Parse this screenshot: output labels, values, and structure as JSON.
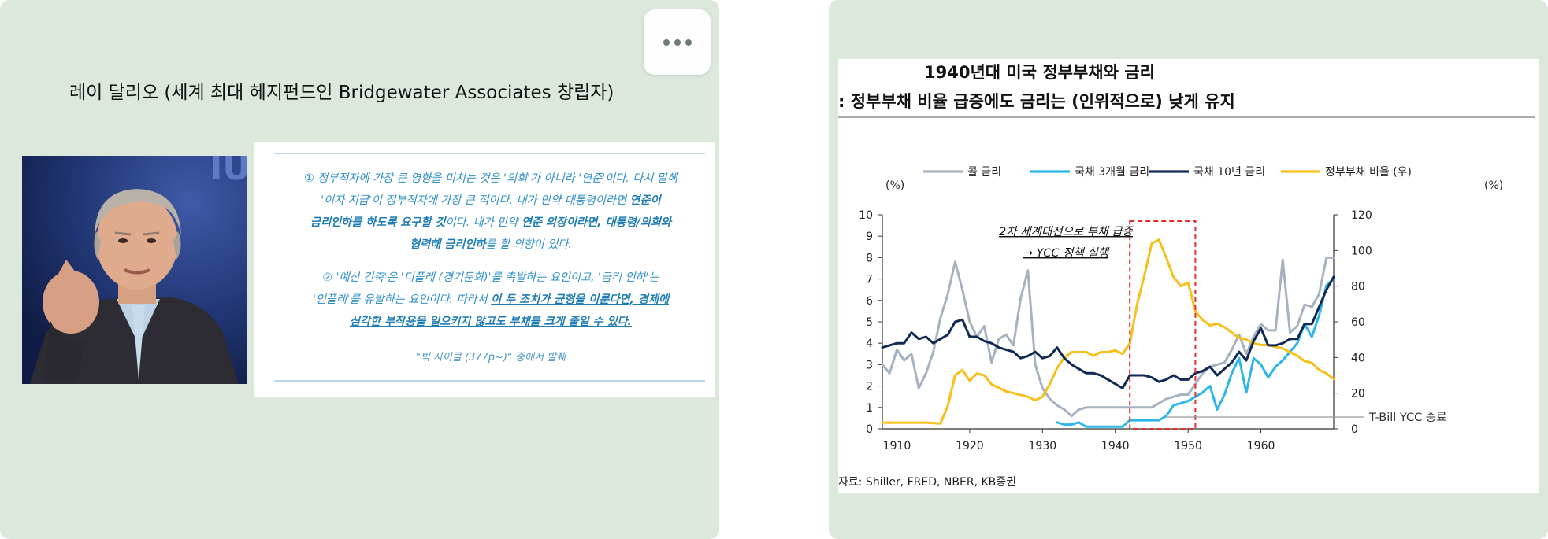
{
  "left": {
    "title": "레이 달리오 (세계 최대 헤지펀드인 Bridgewater Associates 창립자)",
    "photo_subject": "portrait-of-speaker",
    "quote": {
      "p1_line1": "① 정부적자에 가장 큰 영향을 미치는 것은 '의회'가 아니라 '연준'이다. 다시 말해",
      "p1_line2_a": "'이자 지급'이 정부적자에 가장 큰 적이다. 내가 만약 대통령이라면 ",
      "p1_line2_u": "연준이",
      "p1_line3_u": "금리인하를 하도록 요구할 것",
      "p1_line3_b": "이다. 내가 만약 ",
      "p1_line3_u2": "연준 의장이라면, 대통령/의회와",
      "p1_line4_u": "협력해 금리인하",
      "p1_line4_b": "를 할 의향이 있다.",
      "p2_line1": "② '예산 긴축'은 '디플레 (경기둔화)'를 촉발하는 요인이고, '금리 인하'는",
      "p2_line2_a": "'인플레'를 유발하는 요인이다. 따라서 ",
      "p2_line2_u": "이 두 조치가 균형을 이룬다면, 경제에",
      "p2_line3_u": "심각한 부작용을 일으키지 않고도 부채를 크게 줄일 수 있다.",
      "source": "\"빅 사이클 (377p~)\" 중에서 발췌"
    }
  },
  "menu": {
    "icon": "more-horizontal-icon"
  },
  "right": {
    "title_line1": "1940년대 미국 정부부채와 금리",
    "title_line2": ": 정부부채 비율 급증에도 금리는 (인위적으로) 낮게 유지",
    "source_note": "자료: Shiller, FRED, NBER, KB증권"
  },
  "chart_data": {
    "type": "line",
    "x_ticks": [
      "1910",
      "1920",
      "1930",
      "1940",
      "1950",
      "1960"
    ],
    "xlim": [
      1908,
      1970
    ],
    "y_left": {
      "label": "(%)",
      "ticks": [
        "0",
        "1",
        "2",
        "3",
        "4",
        "5",
        "6",
        "7",
        "8",
        "9",
        "10"
      ],
      "ylim": [
        0,
        10
      ]
    },
    "y_right": {
      "label": "(%)",
      "ticks": [
        "0",
        "20",
        "40",
        "60",
        "80",
        "100",
        "120"
      ],
      "ylim": [
        0,
        120
      ]
    },
    "legend_position": "top",
    "series": [
      {
        "name": "콜 금리",
        "axis": "left",
        "color": "#a7b2c1",
        "points": [
          [
            1908,
            3.0
          ],
          [
            1909,
            2.6
          ],
          [
            1910,
            3.7
          ],
          [
            1911,
            3.2
          ],
          [
            1912,
            3.5
          ],
          [
            1913,
            1.9
          ],
          [
            1914,
            2.6
          ],
          [
            1915,
            3.6
          ],
          [
            1916,
            5.2
          ],
          [
            1917,
            6.3
          ],
          [
            1918,
            7.8
          ],
          [
            1919,
            6.5
          ],
          [
            1920,
            5.0
          ],
          [
            1921,
            4.3
          ],
          [
            1922,
            4.8
          ],
          [
            1923,
            3.1
          ],
          [
            1924,
            4.2
          ],
          [
            1925,
            4.4
          ],
          [
            1926,
            3.9
          ],
          [
            1927,
            6.1
          ],
          [
            1928,
            7.4
          ],
          [
            1929,
            3.0
          ],
          [
            1930,
            1.9
          ],
          [
            1931,
            1.4
          ],
          [
            1932,
            1.1
          ],
          [
            1933,
            0.9
          ],
          [
            1934,
            0.6
          ],
          [
            1935,
            0.9
          ],
          [
            1936,
            1.0
          ],
          [
            1937,
            1.0
          ],
          [
            1938,
            1.0
          ],
          [
            1939,
            1.0
          ],
          [
            1940,
            1.0
          ],
          [
            1941,
            1.0
          ],
          [
            1942,
            1.0
          ],
          [
            1943,
            1.0
          ],
          [
            1944,
            1.0
          ],
          [
            1945,
            1.0
          ],
          [
            1946,
            1.2
          ],
          [
            1947,
            1.4
          ],
          [
            1948,
            1.5
          ],
          [
            1949,
            1.6
          ],
          [
            1950,
            1.6
          ],
          [
            1951,
            2.1
          ],
          [
            1952,
            2.6
          ],
          [
            1953,
            2.9
          ],
          [
            1954,
            3.0
          ],
          [
            1955,
            3.1
          ],
          [
            1956,
            3.7
          ],
          [
            1957,
            4.4
          ],
          [
            1958,
            3.5
          ],
          [
            1959,
            4.3
          ],
          [
            1960,
            4.9
          ],
          [
            1961,
            4.6
          ],
          [
            1962,
            4.6
          ],
          [
            1963,
            7.9
          ],
          [
            1964,
            4.5
          ],
          [
            1965,
            4.8
          ],
          [
            1966,
            5.8
          ],
          [
            1967,
            5.7
          ],
          [
            1968,
            6.3
          ],
          [
            1969,
            8.0
          ],
          [
            1970,
            8.0
          ]
        ]
      },
      {
        "name": "국채 3개월 금리",
        "axis": "left",
        "color": "#2db6ea",
        "points": [
          [
            1932,
            0.3
          ],
          [
            1933,
            0.2
          ],
          [
            1934,
            0.2
          ],
          [
            1935,
            0.3
          ],
          [
            1936,
            0.1
          ],
          [
            1937,
            0.1
          ],
          [
            1938,
            0.1
          ],
          [
            1939,
            0.1
          ],
          [
            1940,
            0.1
          ],
          [
            1941,
            0.1
          ],
          [
            1942,
            0.4
          ],
          [
            1943,
            0.4
          ],
          [
            1944,
            0.4
          ],
          [
            1945,
            0.4
          ],
          [
            1946,
            0.4
          ],
          [
            1947,
            0.6
          ],
          [
            1948,
            1.1
          ],
          [
            1949,
            1.2
          ],
          [
            1950,
            1.3
          ],
          [
            1951,
            1.5
          ],
          [
            1952,
            1.7
          ],
          [
            1953,
            2.0
          ],
          [
            1954,
            0.9
          ],
          [
            1955,
            1.6
          ],
          [
            1956,
            2.6
          ],
          [
            1957,
            3.3
          ],
          [
            1958,
            1.7
          ],
          [
            1959,
            3.3
          ],
          [
            1960,
            3.0
          ],
          [
            1961,
            2.4
          ],
          [
            1962,
            2.9
          ],
          [
            1963,
            3.2
          ],
          [
            1964,
            3.6
          ],
          [
            1965,
            4.0
          ],
          [
            1966,
            4.9
          ],
          [
            1967,
            4.3
          ],
          [
            1968,
            5.3
          ],
          [
            1969,
            6.7
          ],
          [
            1970,
            7.0
          ]
        ]
      },
      {
        "name": "국채 10년 금리",
        "axis": "left",
        "color": "#112a54",
        "points": [
          [
            1908,
            3.8
          ],
          [
            1909,
            3.9
          ],
          [
            1910,
            4.0
          ],
          [
            1911,
            4.0
          ],
          [
            1912,
            4.5
          ],
          [
            1913,
            4.2
          ],
          [
            1914,
            4.3
          ],
          [
            1915,
            4.0
          ],
          [
            1916,
            4.2
          ],
          [
            1917,
            4.4
          ],
          [
            1918,
            5.0
          ],
          [
            1919,
            5.1
          ],
          [
            1920,
            4.3
          ],
          [
            1921,
            4.3
          ],
          [
            1922,
            4.1
          ],
          [
            1923,
            4.0
          ],
          [
            1924,
            3.8
          ],
          [
            1925,
            3.7
          ],
          [
            1926,
            3.6
          ],
          [
            1927,
            3.3
          ],
          [
            1928,
            3.4
          ],
          [
            1929,
            3.6
          ],
          [
            1930,
            3.3
          ],
          [
            1931,
            3.4
          ],
          [
            1932,
            3.8
          ],
          [
            1933,
            3.3
          ],
          [
            1934,
            3.0
          ],
          [
            1935,
            2.8
          ],
          [
            1936,
            2.6
          ],
          [
            1937,
            2.6
          ],
          [
            1938,
            2.5
          ],
          [
            1939,
            2.3
          ],
          [
            1940,
            2.1
          ],
          [
            1941,
            1.9
          ],
          [
            1942,
            2.5
          ],
          [
            1943,
            2.5
          ],
          [
            1944,
            2.5
          ],
          [
            1945,
            2.4
          ],
          [
            1946,
            2.2
          ],
          [
            1947,
            2.3
          ],
          [
            1948,
            2.5
          ],
          [
            1949,
            2.3
          ],
          [
            1950,
            2.3
          ],
          [
            1951,
            2.6
          ],
          [
            1952,
            2.7
          ],
          [
            1953,
            2.9
          ],
          [
            1954,
            2.5
          ],
          [
            1955,
            2.8
          ],
          [
            1956,
            3.1
          ],
          [
            1957,
            3.6
          ],
          [
            1958,
            3.2
          ],
          [
            1959,
            4.1
          ],
          [
            1960,
            4.7
          ],
          [
            1961,
            3.9
          ],
          [
            1962,
            3.9
          ],
          [
            1963,
            4.0
          ],
          [
            1964,
            4.2
          ],
          [
            1965,
            4.2
          ],
          [
            1966,
            4.9
          ],
          [
            1967,
            4.9
          ],
          [
            1968,
            5.7
          ],
          [
            1969,
            6.5
          ],
          [
            1970,
            7.1
          ]
        ]
      },
      {
        "name": "정부부채 비율 (우)",
        "axis": "right",
        "color": "#f7bf19",
        "points": [
          [
            1908,
            3.5
          ],
          [
            1910,
            3.5
          ],
          [
            1912,
            3.5
          ],
          [
            1914,
            3.5
          ],
          [
            1916,
            3.0
          ],
          [
            1917,
            13
          ],
          [
            1918,
            30
          ],
          [
            1919,
            33
          ],
          [
            1920,
            27
          ],
          [
            1921,
            31
          ],
          [
            1922,
            30
          ],
          [
            1923,
            25
          ],
          [
            1924,
            23
          ],
          [
            1925,
            21
          ],
          [
            1926,
            20
          ],
          [
            1927,
            19
          ],
          [
            1928,
            18
          ],
          [
            1929,
            16
          ],
          [
            1930,
            18
          ],
          [
            1931,
            25
          ],
          [
            1932,
            34
          ],
          [
            1933,
            40
          ],
          [
            1934,
            43
          ],
          [
            1935,
            43
          ],
          [
            1936,
            43
          ],
          [
            1937,
            41
          ],
          [
            1938,
            43
          ],
          [
            1939,
            43
          ],
          [
            1940,
            44
          ],
          [
            1941,
            42
          ],
          [
            1942,
            48
          ],
          [
            1943,
            70
          ],
          [
            1944,
            86
          ],
          [
            1945,
            104
          ],
          [
            1946,
            106
          ],
          [
            1947,
            96
          ],
          [
            1948,
            85
          ],
          [
            1949,
            80
          ],
          [
            1950,
            82
          ],
          [
            1951,
            66
          ],
          [
            1952,
            61
          ],
          [
            1953,
            58
          ],
          [
            1954,
            59
          ],
          [
            1955,
            57
          ],
          [
            1956,
            54
          ],
          [
            1957,
            51
          ],
          [
            1958,
            50
          ],
          [
            1959,
            48
          ],
          [
            1960,
            47
          ],
          [
            1961,
            47
          ],
          [
            1962,
            46
          ],
          [
            1963,
            45
          ],
          [
            1964,
            43
          ],
          [
            1965,
            41
          ],
          [
            1966,
            38
          ],
          [
            1967,
            37
          ],
          [
            1968,
            33
          ],
          [
            1969,
            31
          ],
          [
            1970,
            28
          ]
        ]
      }
    ],
    "annotations": {
      "war_note_1": "2차 세계대전으로 부채 급증",
      "war_note_2": "→ YCC 정책 실행",
      "ycc_end": "T-Bill YCC 종료",
      "highlight_range": [
        1942,
        1951
      ]
    }
  }
}
